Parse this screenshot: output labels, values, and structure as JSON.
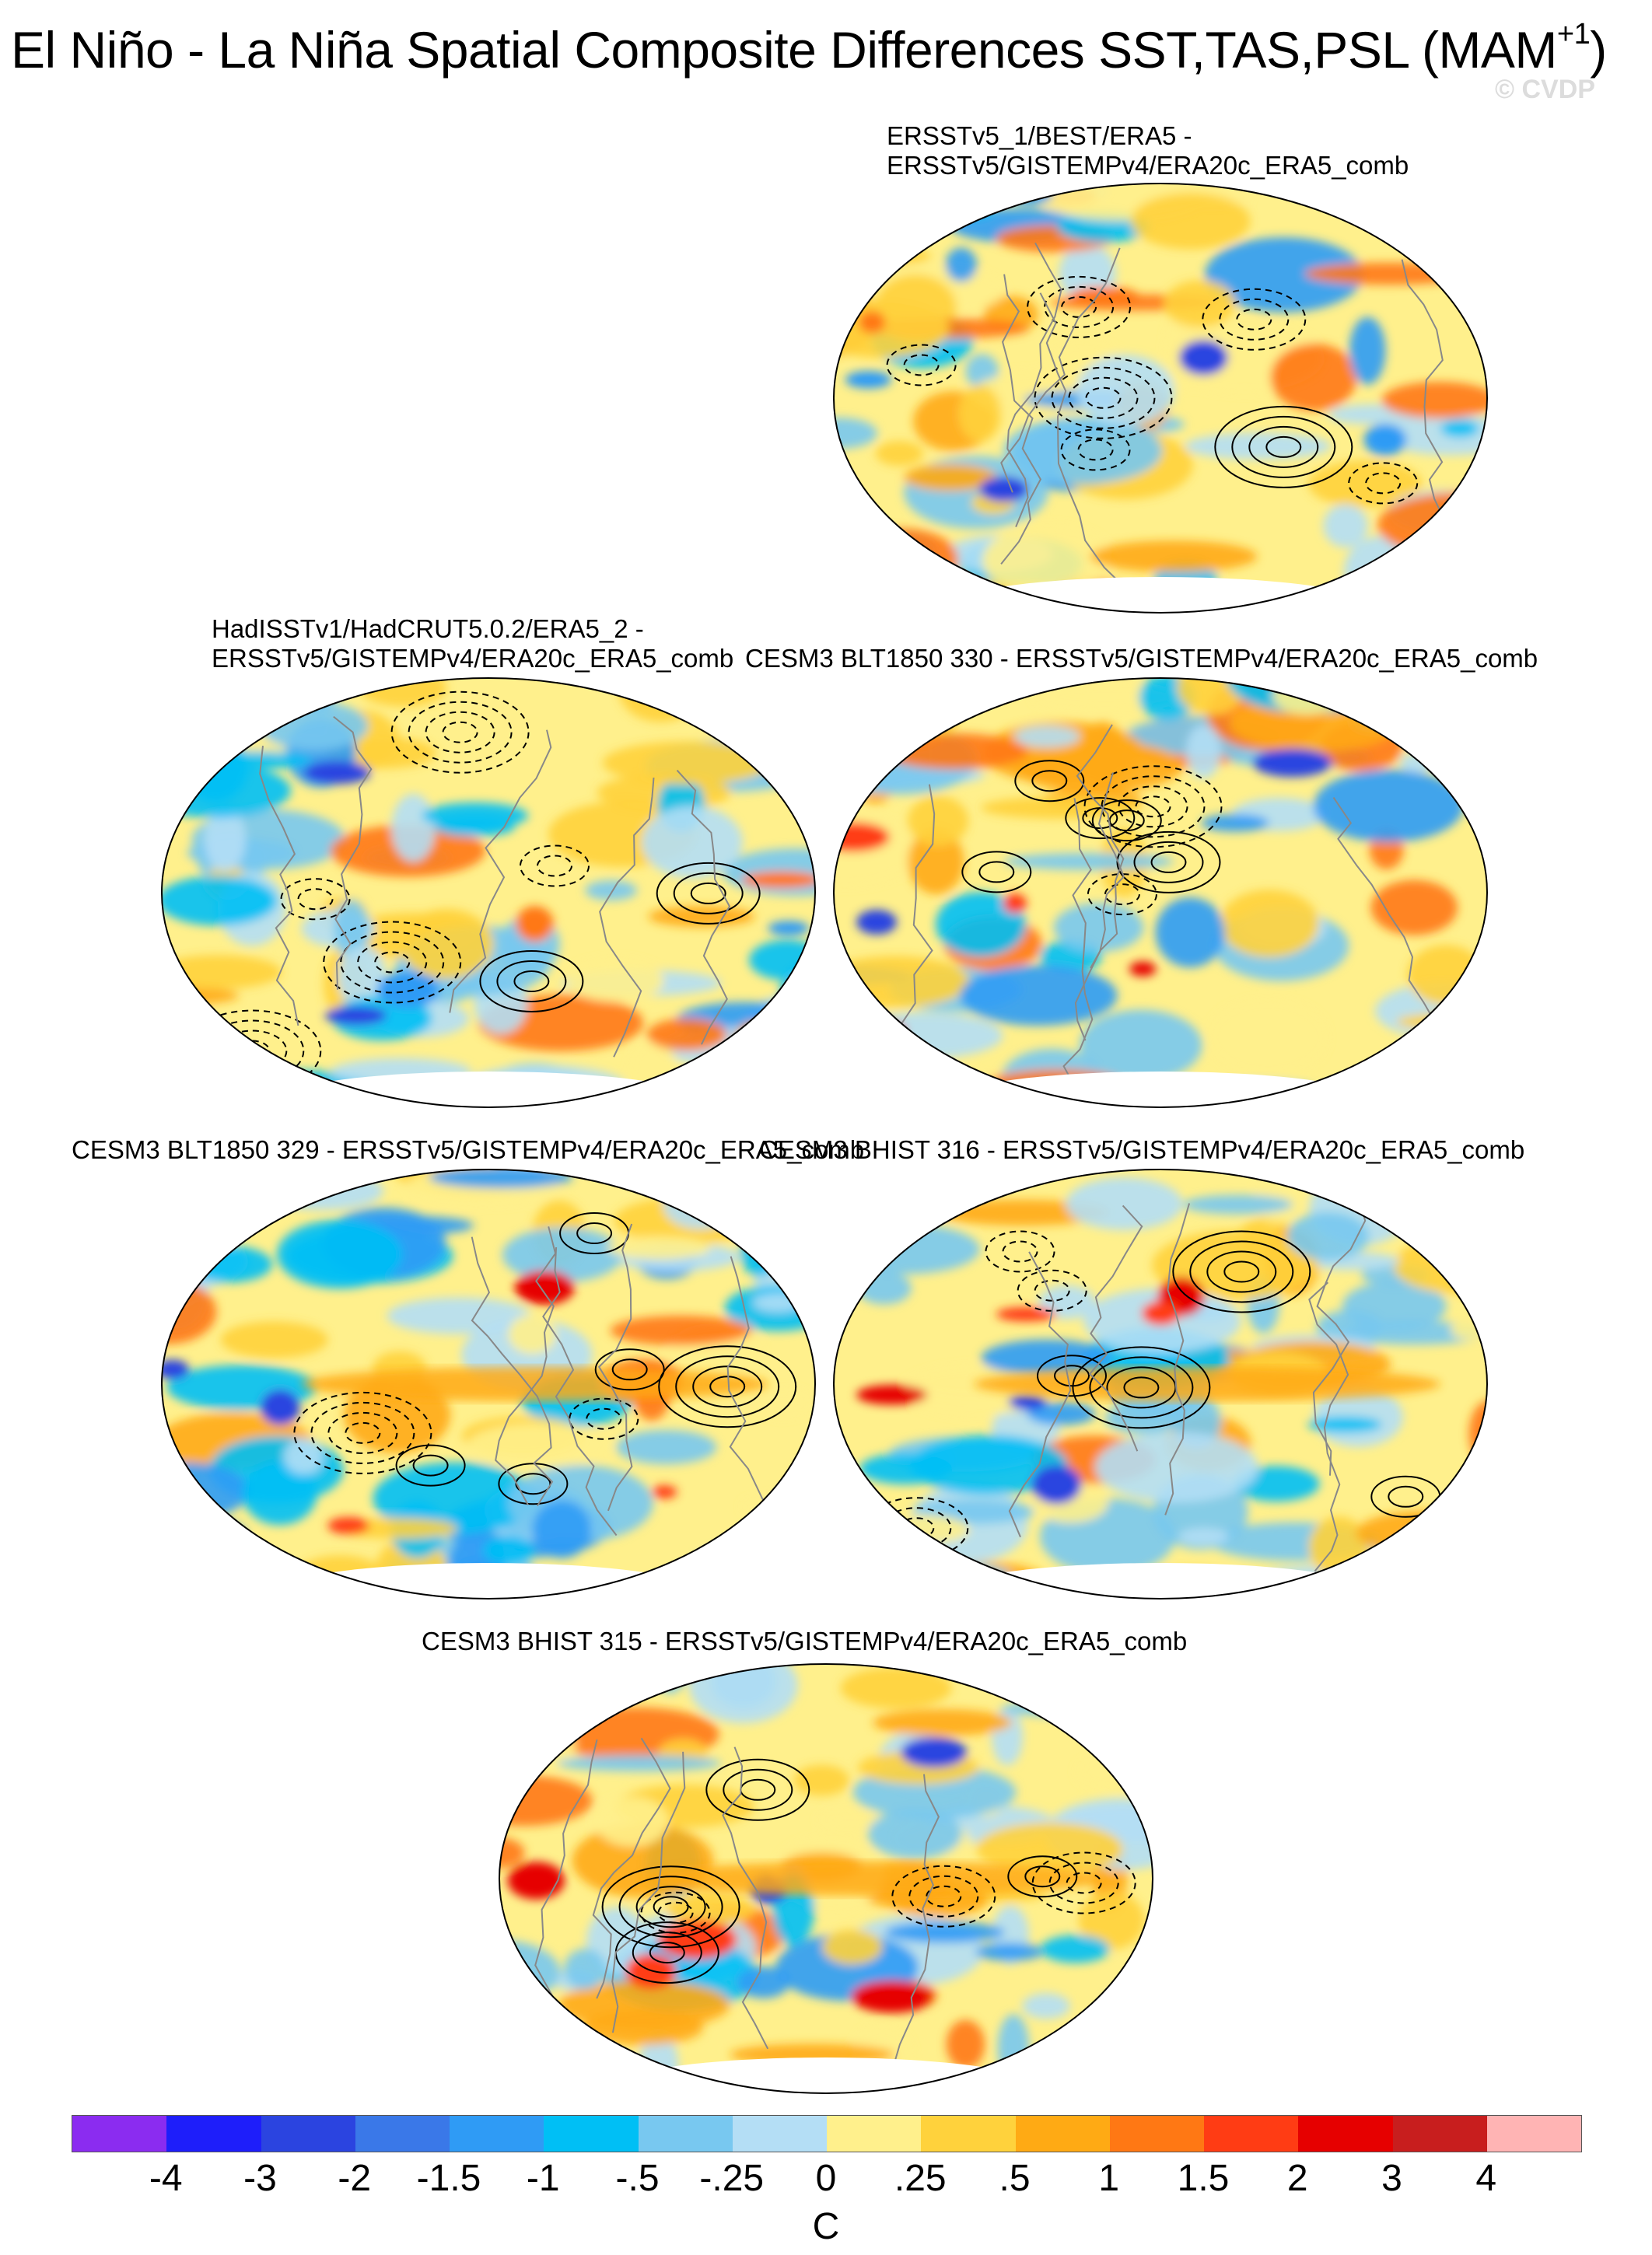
{
  "figure": {
    "title_main": "El Niño - La Niña Spatial Composite Differences SST,TAS,PSL (MAM",
    "title_sup": "+1",
    "title_close": ")",
    "watermark": "© CVDP"
  },
  "panels": [
    {
      "id": "p1",
      "title_lines": [
        "ERSSTv5_1/BEST/ERA5 -",
        "ERSSTv5/GISTEMPv4/ERA20c_ERA5_comb"
      ]
    },
    {
      "id": "p2",
      "title_lines": [
        "HadISSTv1/HadCRUT5.0.2/ERA5_2 -",
        "ERSSTv5/GISTEMPv4/ERA20c_ERA5_comb"
      ]
    },
    {
      "id": "p3",
      "title_lines": [
        "CESM3 BLT1850 330 - ERSSTv5/GISTEMPv4/ERA20c_ERA5_comb"
      ]
    },
    {
      "id": "p4",
      "title_lines": [
        "CESM3 BLT1850 329 - ERSSTv5/GISTEMPv4/ERA20c_ERA5_comb"
      ]
    },
    {
      "id": "p5",
      "title_lines": [
        "CESM3 BHIST 316 - ERSSTv5/GISTEMPv4/ERA20c_ERA5_comb"
      ]
    },
    {
      "id": "p6",
      "title_lines": [
        "CESM3 BHIST 315 - ERSSTv5/GISTEMPv4/ERA20c_ERA5_comb"
      ]
    }
  ],
  "colorbar": {
    "colors": [
      "#8b2cf0",
      "#1e1efa",
      "#2b44e0",
      "#3a78e8",
      "#2f9bf5",
      "#00bff5",
      "#78c8f0",
      "#b4def5",
      "#fff08c",
      "#ffd23c",
      "#ffaa14",
      "#ff7814",
      "#ff3c14",
      "#e60000",
      "#c81e1e",
      "#ffb4b4"
    ],
    "tick_labels": [
      "-4",
      "-3",
      "-2",
      "-1.5",
      "-1",
      "-.5",
      "-.25",
      "0",
      ".25",
      ".5",
      "1",
      "1.5",
      "2",
      "3",
      "4"
    ],
    "units": "C"
  }
}
